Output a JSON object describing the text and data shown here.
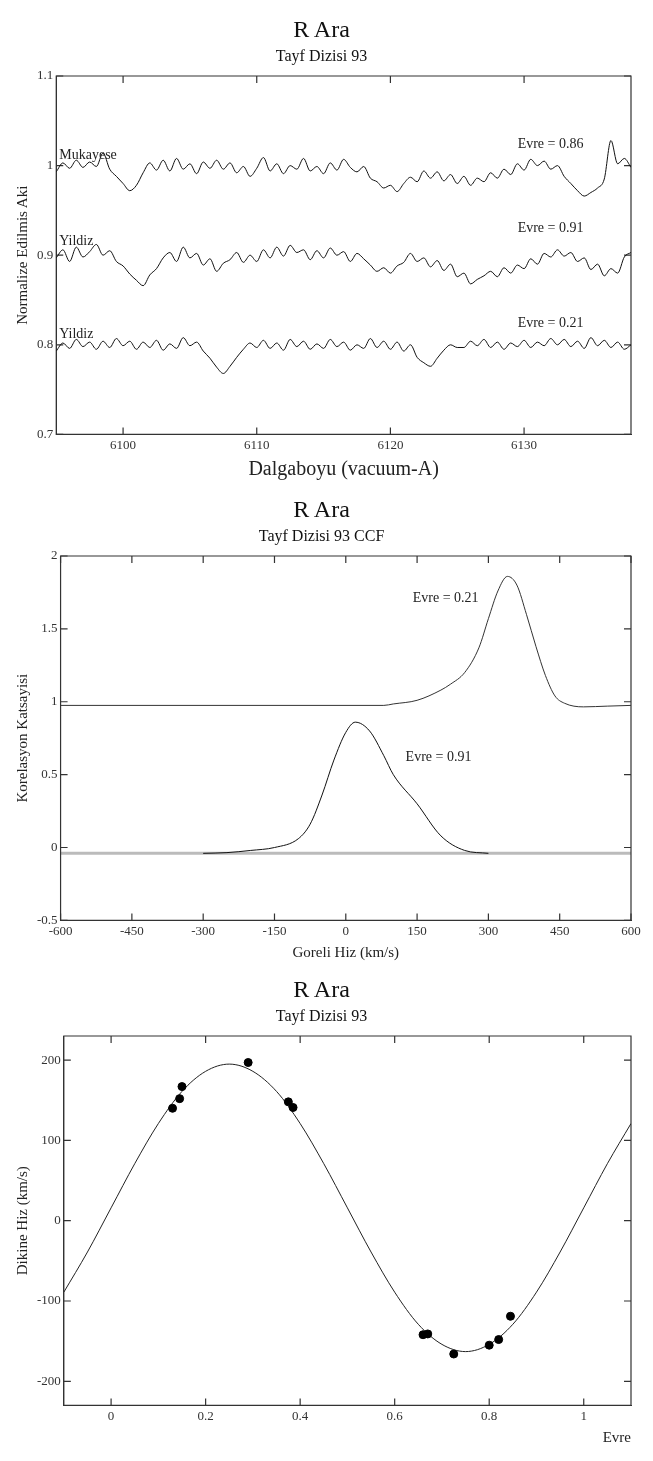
{
  "chart_data": [
    {
      "type": "line",
      "title": "R Ara",
      "subtitle": "Tayf Dizisi 93",
      "xlabel": "Dalgaboyu (vacuum-A)",
      "ylabel": "Normalize Edilmis Aki",
      "xlim": [
        6095,
        6138
      ],
      "xticks": [
        6100,
        6110,
        6120,
        6130
      ],
      "ylim": [
        0.7,
        1.1
      ],
      "yticks": [
        0.7,
        0.8,
        0.9,
        1,
        1.1
      ],
      "x": [
        6095,
        6095.5,
        6096,
        6096.5,
        6097,
        6097.5,
        6098,
        6098.5,
        6099,
        6099.5,
        6100,
        6100.5,
        6101,
        6101.5,
        6102,
        6102.5,
        6103,
        6103.5,
        6104,
        6104.5,
        6105,
        6105.5,
        6106,
        6106.5,
        6107,
        6107.5,
        6108,
        6108.5,
        6109,
        6109.5,
        6110,
        6110.5,
        6111,
        6111.5,
        6112,
        6112.5,
        6113,
        6113.5,
        6114,
        6114.5,
        6115,
        6115.5,
        6116,
        6116.5,
        6117,
        6117.5,
        6118,
        6118.5,
        6119,
        6119.5,
        6120,
        6120.5,
        6121,
        6121.5,
        6122,
        6122.5,
        6123,
        6123.5,
        6124,
        6124.5,
        6125,
        6125.5,
        6126,
        6126.5,
        6127,
        6127.5,
        6128,
        6128.5,
        6129,
        6129.5,
        6130,
        6130.5,
        6131,
        6131.5,
        6132,
        6132.5,
        6133,
        6133.5,
        6134,
        6134.5,
        6135,
        6135.5,
        6136,
        6136.5,
        6137,
        6137.5,
        6138
      ],
      "series": [
        {
          "name": "Mukayese",
          "color": "#111111",
          "values": [
            0.993,
            1.003,
            0.997,
            1.006,
            0.998,
            1.004,
            0.999,
            1.014,
            0.996,
            0.988,
            0.98,
            0.972,
            0.978,
            0.992,
            1.003,
            0.995,
            1.006,
            0.994,
            1.008,
            0.996,
            1.002,
            0.991,
            1.004,
            0.997,
            1.006,
            0.996,
            1.003,
            0.992,
            0.999,
            0.988,
            0.997,
            1.009,
            0.994,
            1.002,
            0.991,
            1.0,
            0.996,
            1.008,
            0.994,
            0.999,
            0.991,
            1.003,
            0.995,
            1.007,
            0.998,
            0.993,
            0.999,
            0.986,
            0.982,
            0.975,
            0.978,
            0.971,
            0.98,
            0.987,
            0.982,
            0.994,
            0.986,
            0.993,
            0.983,
            0.99,
            0.98,
            0.988,
            0.978,
            0.986,
            0.982,
            0.992,
            0.986,
            0.996,
            0.99,
            1.002,
            0.995,
            1.007,
            1.0,
            1.005,
            0.996,
            1.0,
            0.988,
            0.98,
            0.972,
            0.966,
            0.97,
            0.975,
            0.985,
            1.028,
            1.002,
            1.008,
            0.998
          ]
        },
        {
          "name": "Yildiz",
          "color": "#111111",
          "values": [
            0.897,
            0.906,
            0.893,
            0.909,
            0.898,
            0.904,
            0.912,
            0.9,
            0.905,
            0.893,
            0.888,
            0.879,
            0.872,
            0.866,
            0.878,
            0.885,
            0.897,
            0.903,
            0.893,
            0.909,
            0.897,
            0.902,
            0.889,
            0.896,
            0.882,
            0.891,
            0.895,
            0.903,
            0.892,
            0.9,
            0.893,
            0.906,
            0.897,
            0.909,
            0.899,
            0.911,
            0.903,
            0.906,
            0.895,
            0.905,
            0.897,
            0.908,
            0.9,
            0.904,
            0.893,
            0.902,
            0.896,
            0.889,
            0.882,
            0.886,
            0.88,
            0.888,
            0.892,
            0.902,
            0.893,
            0.897,
            0.887,
            0.894,
            0.883,
            0.89,
            0.876,
            0.88,
            0.868,
            0.873,
            0.877,
            0.882,
            0.876,
            0.886,
            0.88,
            0.889,
            0.885,
            0.896,
            0.89,
            0.902,
            0.898,
            0.906,
            0.899,
            0.903,
            0.893,
            0.897,
            0.884,
            0.89,
            0.877,
            0.885,
            0.88,
            0.898,
            0.903
          ]
        },
        {
          "name": "Yildiz",
          "color": "#111111",
          "values": [
            0.793,
            0.802,
            0.796,
            0.806,
            0.798,
            0.803,
            0.795,
            0.804,
            0.797,
            0.807,
            0.799,
            0.804,
            0.795,
            0.803,
            0.797,
            0.805,
            0.794,
            0.801,
            0.796,
            0.808,
            0.799,
            0.803,
            0.793,
            0.785,
            0.775,
            0.768,
            0.776,
            0.786,
            0.795,
            0.802,
            0.797,
            0.805,
            0.796,
            0.802,
            0.794,
            0.806,
            0.798,
            0.804,
            0.795,
            0.801,
            0.796,
            0.806,
            0.798,
            0.803,
            0.794,
            0.8,
            0.796,
            0.807,
            0.797,
            0.804,
            0.795,
            0.803,
            0.793,
            0.8,
            0.786,
            0.78,
            0.776,
            0.785,
            0.794,
            0.8,
            0.797,
            0.797,
            0.804,
            0.799,
            0.806,
            0.797,
            0.803,
            0.795,
            0.802,
            0.798,
            0.805,
            0.797,
            0.803,
            0.799,
            0.807,
            0.8,
            0.806,
            0.798,
            0.804,
            0.796,
            0.808,
            0.799,
            0.805,
            0.797,
            0.803,
            0.795,
            0.8
          ]
        }
      ],
      "annotations": [
        "Evre = 0.86",
        "Evre = 0.91",
        "Evre = 0.21"
      ]
    },
    {
      "type": "line",
      "title": "R Ara",
      "subtitle": "Tayf Dizisi 93 CCF",
      "xlabel": "Goreli Hiz (km/s)",
      "ylabel": "Korelasyon Katsayisi",
      "xlim": [
        -600,
        600
      ],
      "xticks": [
        -600,
        -450,
        -300,
        -150,
        0,
        150,
        300,
        450,
        600
      ],
      "ylim": [
        -0.5,
        2
      ],
      "yticks": [
        -0.5,
        0,
        0.5,
        1,
        1.5,
        2
      ],
      "series": [
        {
          "color": "#333333",
          "x": [
            -600,
            80,
            100,
            150,
            200,
            220,
            250,
            280,
            300,
            320,
            340,
            360,
            380,
            400,
            420,
            440,
            460,
            500,
            550,
            600
          ],
          "values": [
            0.975,
            0.975,
            0.985,
            1.01,
            1.08,
            1.12,
            1.2,
            1.37,
            1.57,
            1.76,
            1.86,
            1.8,
            1.6,
            1.38,
            1.18,
            1.04,
            0.99,
            0.965,
            0.97,
            0.975
          ]
        },
        {
          "color": "#111111",
          "x": [
            -300,
            -250,
            -200,
            -150,
            -100,
            -75,
            -50,
            -25,
            0,
            20,
            50,
            80,
            100,
            150,
            200,
            250,
            300
          ],
          "values": [
            -0.04,
            -0.035,
            -0.02,
            0.0,
            0.06,
            0.16,
            0.36,
            0.6,
            0.79,
            0.86,
            0.8,
            0.63,
            0.5,
            0.3,
            0.08,
            -0.02,
            -0.04
          ]
        }
      ],
      "ref_lines": [
        {
          "axis": "y",
          "value": -0.04,
          "color": "#bbbbbb"
        }
      ],
      "annotations": [
        "Evre = 0.21",
        "Evre = 0.91"
      ]
    },
    {
      "type": "scatter",
      "title": "R Ara",
      "subtitle": "Tayf Dizisi 93",
      "xlabel": "Evre",
      "ylabel": "Dikine Hiz (km/s)",
      "xlim": [
        -0.1,
        1.1
      ],
      "xticks": [
        0,
        0.2,
        0.4,
        0.6,
        0.8,
        1
      ],
      "ylim": [
        -230,
        230
      ],
      "yticks": [
        -200,
        -100,
        0,
        100,
        200
      ],
      "marker": "circle",
      "series": [
        {
          "color": "#000000",
          "x": [
            0.13,
            0.145,
            0.15,
            0.29,
            0.375,
            0.385,
            0.66,
            0.67,
            0.725,
            0.8,
            0.82,
            0.845
          ],
          "values": [
            140,
            152,
            167,
            197,
            148,
            141,
            -142,
            -141,
            -166,
            -155,
            -148,
            -119
          ]
        },
        {
          "type": "line",
          "marker": "none",
          "color": "#222222",
          "x": [
            -0.1,
            -0.05,
            0,
            0.05,
            0.1,
            0.15,
            0.2,
            0.25,
            0.3,
            0.35,
            0.4,
            0.45,
            0.5,
            0.55,
            0.6,
            0.65,
            0.7,
            0.75,
            0.8,
            0.85,
            0.9,
            0.95,
            1,
            1.05,
            1.1
          ],
          "values": [
            -89,
            -39,
            16,
            71,
            121,
            161,
            186,
            195,
            186,
            161,
            121,
            71,
            16,
            -39,
            -89,
            -129,
            -154,
            -163,
            -154,
            -129,
            -89,
            -39,
            16,
            71,
            121
          ]
        }
      ]
    }
  ]
}
